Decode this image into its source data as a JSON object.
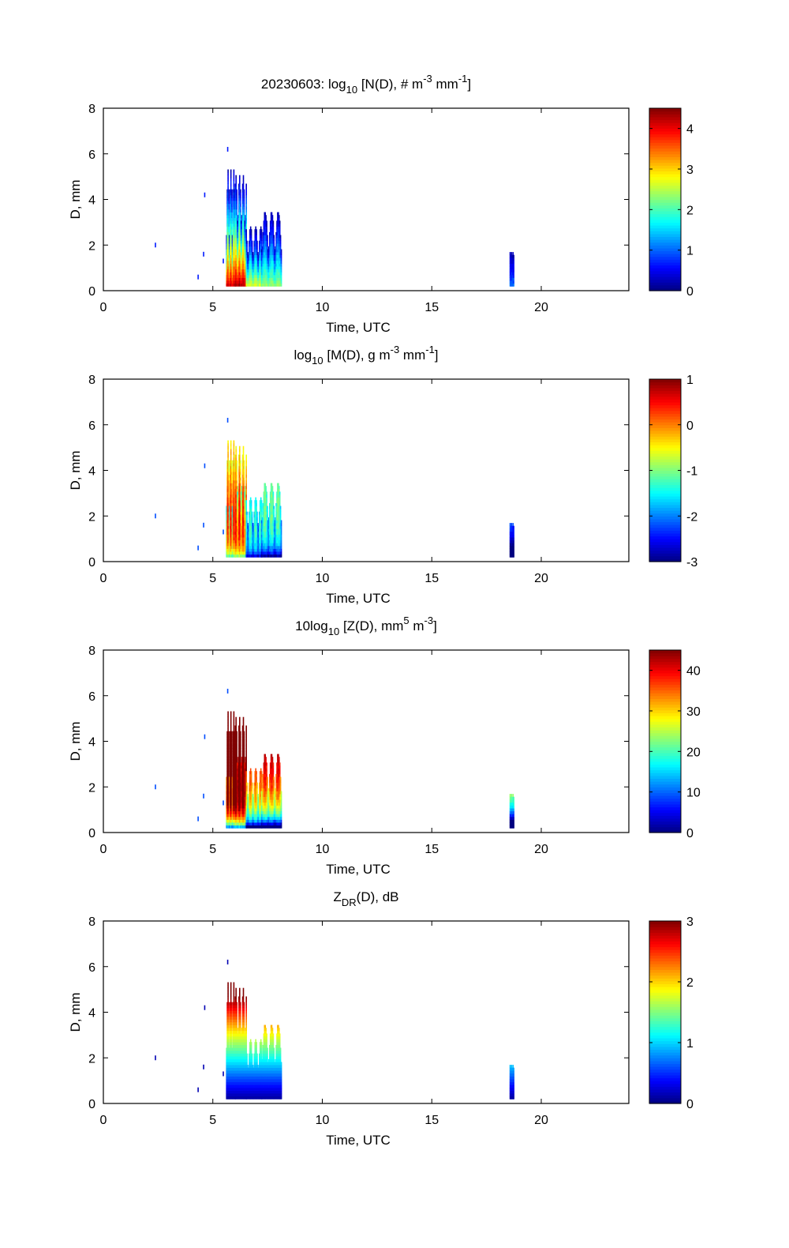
{
  "chart_data": [
    {
      "type": "heatmap",
      "title_parts": {
        "pre": "20230603: log",
        "sub": "10",
        "mid": " [N(D), # m",
        "sup1": "-3",
        "mid2": " mm",
        "sup2": "-1",
        "post": "]"
      },
      "xlabel": "Time, UTC",
      "ylabel": "D, mm",
      "xlim": [
        0,
        24
      ],
      "ylim": [
        0,
        8
      ],
      "xticks": [
        "0",
        "5",
        "10",
        "15",
        "20"
      ],
      "yticks": [
        "0",
        "2",
        "4",
        "6",
        "8"
      ],
      "colorbar": {
        "range": [
          0,
          4.5
        ],
        "ticks": [
          "0",
          "1",
          "2",
          "3",
          "4"
        ],
        "tick_values": [
          0,
          1,
          2,
          3,
          4
        ],
        "colormap": "jet"
      },
      "field": "N"
    },
    {
      "type": "heatmap",
      "title_parts": {
        "pre": "log",
        "sub": "10",
        "mid": " [M(D), g m",
        "sup1": "-3",
        "mid2": " mm",
        "sup2": "-1",
        "post": "]"
      },
      "xlabel": "Time, UTC",
      "ylabel": "D, mm",
      "xlim": [
        0,
        24
      ],
      "ylim": [
        0,
        8
      ],
      "xticks": [
        "0",
        "5",
        "10",
        "15",
        "20"
      ],
      "yticks": [
        "0",
        "2",
        "4",
        "6",
        "8"
      ],
      "colorbar": {
        "range": [
          -3,
          1
        ],
        "ticks": [
          "-3",
          "-2",
          "-1",
          "0",
          "1"
        ],
        "tick_values": [
          -3,
          -2,
          -1,
          0,
          1
        ],
        "colormap": "jet"
      },
      "field": "M"
    },
    {
      "type": "heatmap",
      "title_parts": {
        "pre": "10log",
        "sub": "10",
        "mid": " [Z(D),  mm",
        "sup1": "5",
        "mid2": " m",
        "sup2": "-3",
        "post": "]"
      },
      "xlabel": "Time, UTC",
      "ylabel": "D, mm",
      "xlim": [
        0,
        24
      ],
      "ylim": [
        0,
        8
      ],
      "xticks": [
        "0",
        "5",
        "10",
        "15",
        "20"
      ],
      "yticks": [
        "0",
        "2",
        "4",
        "6",
        "8"
      ],
      "colorbar": {
        "range": [
          0,
          45
        ],
        "ticks": [
          "0",
          "10",
          "20",
          "30",
          "40"
        ],
        "tick_values": [
          0,
          10,
          20,
          30,
          40
        ],
        "colormap": "jet"
      },
      "field": "Z"
    },
    {
      "type": "heatmap",
      "title_parts": {
        "pre": "Z",
        "sub": "DR",
        "mid": "(D), dB",
        "sup1": "",
        "mid2": "",
        "sup2": "",
        "post": ""
      },
      "xlabel": "Time, UTC",
      "ylabel": "D, mm",
      "xlim": [
        0,
        24
      ],
      "ylim": [
        0,
        8
      ],
      "xticks": [
        "0",
        "5",
        "10",
        "15",
        "20"
      ],
      "yticks": [
        "0",
        "2",
        "4",
        "6",
        "8"
      ],
      "colorbar": {
        "range": [
          0,
          3
        ],
        "ticks": [
          "0",
          "1",
          "2",
          "3"
        ],
        "tick_values": [
          0,
          1,
          2,
          3
        ],
        "colormap": "jet"
      },
      "field": "ZDR"
    }
  ],
  "precip_events": [
    {
      "t_start": 5.6,
      "t_end": 6.0,
      "d_max": 5.3,
      "peak_logN": 4.2
    },
    {
      "t_start": 6.0,
      "t_end": 6.5,
      "d_max": 5.1,
      "peak_logN": 4.4
    },
    {
      "t_start": 6.5,
      "t_end": 7.2,
      "d_max": 2.8,
      "peak_logN": 2.8
    },
    {
      "t_start": 7.2,
      "t_end": 8.1,
      "d_max": 3.5,
      "peak_logN": 2.4
    },
    {
      "t_start": 18.55,
      "t_end": 18.75,
      "d_max": 1.9,
      "peak_logN": 1.0
    }
  ],
  "isolated_points": [
    {
      "t": 2.35,
      "d": 2.0
    },
    {
      "t": 4.6,
      "d": 4.2
    },
    {
      "t": 4.55,
      "d": 1.6
    },
    {
      "t": 4.3,
      "d": 0.6
    },
    {
      "t": 5.45,
      "d": 1.3
    },
    {
      "t": 5.65,
      "d": 6.2
    }
  ]
}
